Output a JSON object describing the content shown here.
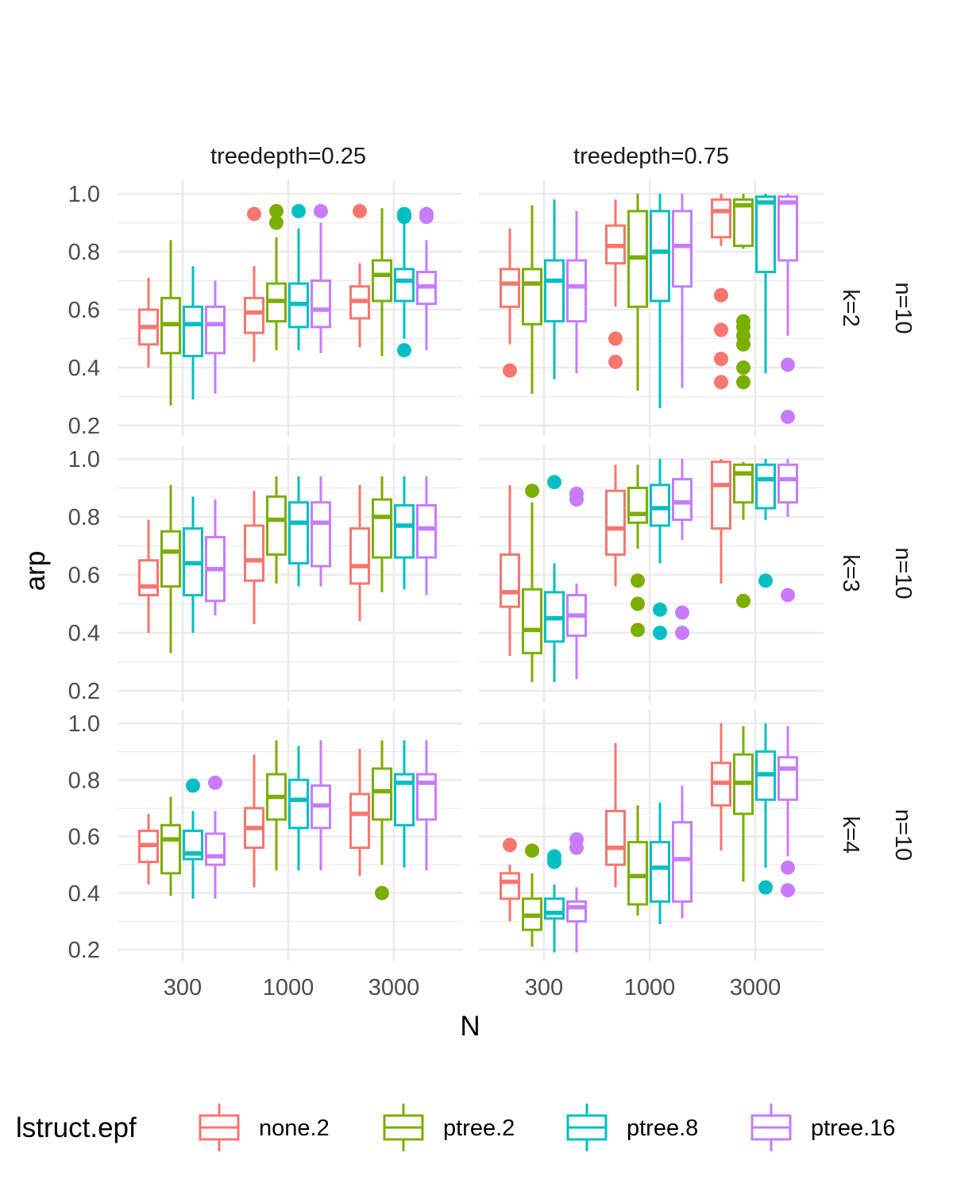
{
  "chart_data": {
    "type": "boxplot",
    "xlabel": "N",
    "ylabel": "arp",
    "ylim": [
      0.2,
      1.0
    ],
    "y_ticks": [
      "0.2",
      "0.4",
      "0.6",
      "0.8",
      "1.0"
    ],
    "x_categories": [
      "300",
      "1000",
      "3000"
    ],
    "col_strips": [
      "treedepth=0.25",
      "treedepth=0.75"
    ],
    "row_strips": [
      {
        "k": "k=2",
        "n": "n=10"
      },
      {
        "k": "k=3",
        "n": "n=10"
      },
      {
        "k": "k=4",
        "n": "n=10"
      }
    ],
    "legend": {
      "title": "lstruct.epf",
      "position": "bottom",
      "series": [
        {
          "name": "none.2",
          "color": "#F8766D"
        },
        {
          "name": "ptree.2",
          "color": "#7CAE00"
        },
        {
          "name": "ptree.8",
          "color": "#00BFC4"
        },
        {
          "name": "ptree.16",
          "color": "#C77CFF"
        }
      ]
    },
    "grid": true,
    "panels": [
      {
        "row": 0,
        "col": 0,
        "groups": [
          [
            {
              "min": 0.4,
              "q1": 0.48,
              "med": 0.54,
              "q3": 0.6,
              "max": 0.71,
              "out": []
            },
            {
              "min": 0.27,
              "q1": 0.45,
              "med": 0.55,
              "q3": 0.64,
              "max": 0.84,
              "out": []
            },
            {
              "min": 0.29,
              "q1": 0.44,
              "med": 0.55,
              "q3": 0.61,
              "max": 0.75,
              "out": []
            },
            {
              "min": 0.31,
              "q1": 0.45,
              "med": 0.55,
              "q3": 0.61,
              "max": 0.7,
              "out": []
            }
          ],
          [
            {
              "min": 0.42,
              "q1": 0.52,
              "med": 0.59,
              "q3": 0.64,
              "max": 0.75,
              "out": [
                0.93
              ]
            },
            {
              "min": 0.46,
              "q1": 0.56,
              "med": 0.63,
              "q3": 0.69,
              "max": 0.85,
              "out": [
                0.94,
                0.9
              ]
            },
            {
              "min": 0.46,
              "q1": 0.54,
              "med": 0.62,
              "q3": 0.69,
              "max": 0.88,
              "out": [
                0.94
              ]
            },
            {
              "min": 0.45,
              "q1": 0.54,
              "med": 0.6,
              "q3": 0.7,
              "max": 0.9,
              "out": [
                0.94
              ]
            }
          ],
          [
            {
              "min": 0.47,
              "q1": 0.57,
              "med": 0.63,
              "q3": 0.68,
              "max": 0.76,
              "out": [
                0.94
              ]
            },
            {
              "min": 0.44,
              "q1": 0.63,
              "med": 0.72,
              "q3": 0.77,
              "max": 0.95,
              "out": []
            },
            {
              "min": 0.5,
              "q1": 0.63,
              "med": 0.7,
              "q3": 0.74,
              "max": 0.9,
              "out": [
                0.93,
                0.92,
                0.46
              ]
            },
            {
              "min": 0.46,
              "q1": 0.62,
              "med": 0.68,
              "q3": 0.73,
              "max": 0.84,
              "out": [
                0.93,
                0.92
              ]
            }
          ]
        ]
      },
      {
        "row": 0,
        "col": 1,
        "groups": [
          [
            {
              "min": 0.48,
              "q1": 0.61,
              "med": 0.69,
              "q3": 0.74,
              "max": 0.88,
              "out": [
                0.39
              ]
            },
            {
              "min": 0.31,
              "q1": 0.55,
              "med": 0.69,
              "q3": 0.74,
              "max": 0.96,
              "out": []
            },
            {
              "min": 0.36,
              "q1": 0.56,
              "med": 0.7,
              "q3": 0.77,
              "max": 0.98,
              "out": []
            },
            {
              "min": 0.38,
              "q1": 0.56,
              "med": 0.68,
              "q3": 0.77,
              "max": 0.94,
              "out": []
            }
          ],
          [
            {
              "min": 0.61,
              "q1": 0.76,
              "med": 0.82,
              "q3": 0.89,
              "max": 0.98,
              "out": [
                0.5,
                0.42
              ]
            },
            {
              "min": 0.32,
              "q1": 0.61,
              "med": 0.78,
              "q3": 0.94,
              "max": 1.0,
              "out": []
            },
            {
              "min": 0.26,
              "q1": 0.63,
              "med": 0.8,
              "q3": 0.94,
              "max": 1.0,
              "out": []
            },
            {
              "min": 0.33,
              "q1": 0.68,
              "med": 0.82,
              "q3": 0.94,
              "max": 1.0,
              "out": []
            }
          ],
          [
            {
              "min": 0.82,
              "q1": 0.85,
              "med": 0.94,
              "q3": 0.98,
              "max": 1.0,
              "out": [
                0.65,
                0.53,
                0.43,
                0.35
              ]
            },
            {
              "min": 0.81,
              "q1": 0.82,
              "med": 0.96,
              "q3": 0.98,
              "max": 1.0,
              "out": [
                0.56,
                0.54,
                0.51,
                0.48,
                0.4,
                0.35
              ]
            },
            {
              "min": 0.38,
              "q1": 0.73,
              "med": 0.97,
              "q3": 0.99,
              "max": 1.0,
              "out": []
            },
            {
              "min": 0.51,
              "q1": 0.77,
              "med": 0.97,
              "q3": 0.99,
              "max": 1.0,
              "out": [
                0.41,
                0.23
              ]
            }
          ]
        ]
      },
      {
        "row": 1,
        "col": 0,
        "groups": [
          [
            {
              "min": 0.4,
              "q1": 0.53,
              "med": 0.56,
              "q3": 0.65,
              "max": 0.79,
              "out": []
            },
            {
              "min": 0.33,
              "q1": 0.56,
              "med": 0.68,
              "q3": 0.75,
              "max": 0.91,
              "out": []
            },
            {
              "min": 0.4,
              "q1": 0.53,
              "med": 0.64,
              "q3": 0.76,
              "max": 0.87,
              "out": []
            },
            {
              "min": 0.46,
              "q1": 0.51,
              "med": 0.62,
              "q3": 0.73,
              "max": 0.86,
              "out": []
            }
          ],
          [
            {
              "min": 0.43,
              "q1": 0.58,
              "med": 0.65,
              "q3": 0.77,
              "max": 0.89,
              "out": []
            },
            {
              "min": 0.57,
              "q1": 0.67,
              "med": 0.79,
              "q3": 0.87,
              "max": 0.94,
              "out": []
            },
            {
              "min": 0.56,
              "q1": 0.64,
              "med": 0.78,
              "q3": 0.85,
              "max": 0.94,
              "out": []
            },
            {
              "min": 0.56,
              "q1": 0.63,
              "med": 0.78,
              "q3": 0.85,
              "max": 0.94,
              "out": []
            }
          ],
          [
            {
              "min": 0.44,
              "q1": 0.57,
              "med": 0.63,
              "q3": 0.76,
              "max": 0.91,
              "out": []
            },
            {
              "min": 0.54,
              "q1": 0.66,
              "med": 0.8,
              "q3": 0.86,
              "max": 0.94,
              "out": []
            },
            {
              "min": 0.55,
              "q1": 0.66,
              "med": 0.77,
              "q3": 0.84,
              "max": 0.94,
              "out": []
            },
            {
              "min": 0.53,
              "q1": 0.66,
              "med": 0.76,
              "q3": 0.84,
              "max": 0.94,
              "out": []
            }
          ]
        ]
      },
      {
        "row": 1,
        "col": 1,
        "groups": [
          [
            {
              "min": 0.32,
              "q1": 0.49,
              "med": 0.54,
              "q3": 0.67,
              "max": 0.91,
              "out": []
            },
            {
              "min": 0.23,
              "q1": 0.33,
              "med": 0.41,
              "q3": 0.55,
              "max": 0.85,
              "out": [
                0.89
              ]
            },
            {
              "min": 0.23,
              "q1": 0.37,
              "med": 0.45,
              "q3": 0.54,
              "max": 0.64,
              "out": [
                0.92
              ]
            },
            {
              "min": 0.24,
              "q1": 0.39,
              "med": 0.46,
              "q3": 0.53,
              "max": 0.57,
              "out": [
                0.88,
                0.86
              ]
            }
          ],
          [
            {
              "min": 0.56,
              "q1": 0.67,
              "med": 0.76,
              "q3": 0.89,
              "max": 0.98,
              "out": []
            },
            {
              "min": 0.69,
              "q1": 0.78,
              "med": 0.81,
              "q3": 0.9,
              "max": 0.98,
              "out": [
                0.58,
                0.5,
                0.41
              ]
            },
            {
              "min": 0.64,
              "q1": 0.77,
              "med": 0.83,
              "q3": 0.91,
              "max": 1.0,
              "out": [
                0.48,
                0.4
              ]
            },
            {
              "min": 0.72,
              "q1": 0.79,
              "med": 0.85,
              "q3": 0.93,
              "max": 1.0,
              "out": [
                0.47,
                0.4
              ]
            }
          ],
          [
            {
              "min": 0.57,
              "q1": 0.76,
              "med": 0.91,
              "q3": 0.99,
              "max": 1.0,
              "out": []
            },
            {
              "min": 0.79,
              "q1": 0.85,
              "med": 0.95,
              "q3": 0.98,
              "max": 0.99,
              "out": [
                0.51
              ]
            },
            {
              "min": 0.79,
              "q1": 0.83,
              "med": 0.93,
              "q3": 0.98,
              "max": 1.0,
              "out": [
                0.58
              ]
            },
            {
              "min": 0.8,
              "q1": 0.85,
              "med": 0.93,
              "q3": 0.98,
              "max": 1.0,
              "out": [
                0.53
              ]
            }
          ]
        ]
      },
      {
        "row": 2,
        "col": 0,
        "groups": [
          [
            {
              "min": 0.43,
              "q1": 0.51,
              "med": 0.57,
              "q3": 0.62,
              "max": 0.68,
              "out": []
            },
            {
              "min": 0.39,
              "q1": 0.47,
              "med": 0.59,
              "q3": 0.64,
              "max": 0.74,
              "out": []
            },
            {
              "min": 0.38,
              "q1": 0.52,
              "med": 0.54,
              "q3": 0.62,
              "max": 0.69,
              "out": [
                0.78
              ]
            },
            {
              "min": 0.38,
              "q1": 0.5,
              "med": 0.53,
              "q3": 0.61,
              "max": 0.69,
              "out": [
                0.79
              ]
            }
          ],
          [
            {
              "min": 0.42,
              "q1": 0.56,
              "med": 0.63,
              "q3": 0.7,
              "max": 0.89,
              "out": []
            },
            {
              "min": 0.48,
              "q1": 0.66,
              "med": 0.74,
              "q3": 0.82,
              "max": 0.94,
              "out": []
            },
            {
              "min": 0.48,
              "q1": 0.63,
              "med": 0.73,
              "q3": 0.8,
              "max": 0.92,
              "out": []
            },
            {
              "min": 0.48,
              "q1": 0.63,
              "med": 0.71,
              "q3": 0.78,
              "max": 0.94,
              "out": []
            }
          ],
          [
            {
              "min": 0.46,
              "q1": 0.56,
              "med": 0.68,
              "q3": 0.75,
              "max": 0.91,
              "out": []
            },
            {
              "min": 0.5,
              "q1": 0.66,
              "med": 0.76,
              "q3": 0.84,
              "max": 0.94,
              "out": [
                0.4
              ]
            },
            {
              "min": 0.49,
              "q1": 0.64,
              "med": 0.79,
              "q3": 0.82,
              "max": 0.94,
              "out": []
            },
            {
              "min": 0.48,
              "q1": 0.66,
              "med": 0.79,
              "q3": 0.82,
              "max": 0.94,
              "out": []
            }
          ]
        ]
      },
      {
        "row": 2,
        "col": 1,
        "groups": [
          [
            {
              "min": 0.3,
              "q1": 0.38,
              "med": 0.44,
              "q3": 0.47,
              "max": 0.5,
              "out": [
                0.57
              ]
            },
            {
              "min": 0.21,
              "q1": 0.27,
              "med": 0.32,
              "q3": 0.38,
              "max": 0.47,
              "out": [
                0.55
              ]
            },
            {
              "min": 0.19,
              "q1": 0.31,
              "med": 0.33,
              "q3": 0.38,
              "max": 0.43,
              "out": [
                0.53,
                0.51
              ]
            },
            {
              "min": 0.19,
              "q1": 0.3,
              "med": 0.35,
              "q3": 0.37,
              "max": 0.42,
              "out": [
                0.59,
                0.56
              ]
            }
          ],
          [
            {
              "min": 0.42,
              "q1": 0.5,
              "med": 0.56,
              "q3": 0.69,
              "max": 0.93,
              "out": []
            },
            {
              "min": 0.32,
              "q1": 0.36,
              "med": 0.46,
              "q3": 0.58,
              "max": 0.71,
              "out": []
            },
            {
              "min": 0.29,
              "q1": 0.37,
              "med": 0.49,
              "q3": 0.58,
              "max": 0.72,
              "out": []
            },
            {
              "min": 0.31,
              "q1": 0.37,
              "med": 0.52,
              "q3": 0.65,
              "max": 0.78,
              "out": []
            }
          ],
          [
            {
              "min": 0.55,
              "q1": 0.71,
              "med": 0.79,
              "q3": 0.86,
              "max": 1.0,
              "out": []
            },
            {
              "min": 0.44,
              "q1": 0.68,
              "med": 0.79,
              "q3": 0.89,
              "max": 0.99,
              "out": []
            },
            {
              "min": 0.49,
              "q1": 0.73,
              "med": 0.82,
              "q3": 0.9,
              "max": 1.0,
              "out": [
                0.42
              ]
            },
            {
              "min": 0.53,
              "q1": 0.73,
              "med": 0.84,
              "q3": 0.88,
              "max": 0.99,
              "out": [
                0.49,
                0.41
              ]
            }
          ]
        ]
      }
    ]
  }
}
